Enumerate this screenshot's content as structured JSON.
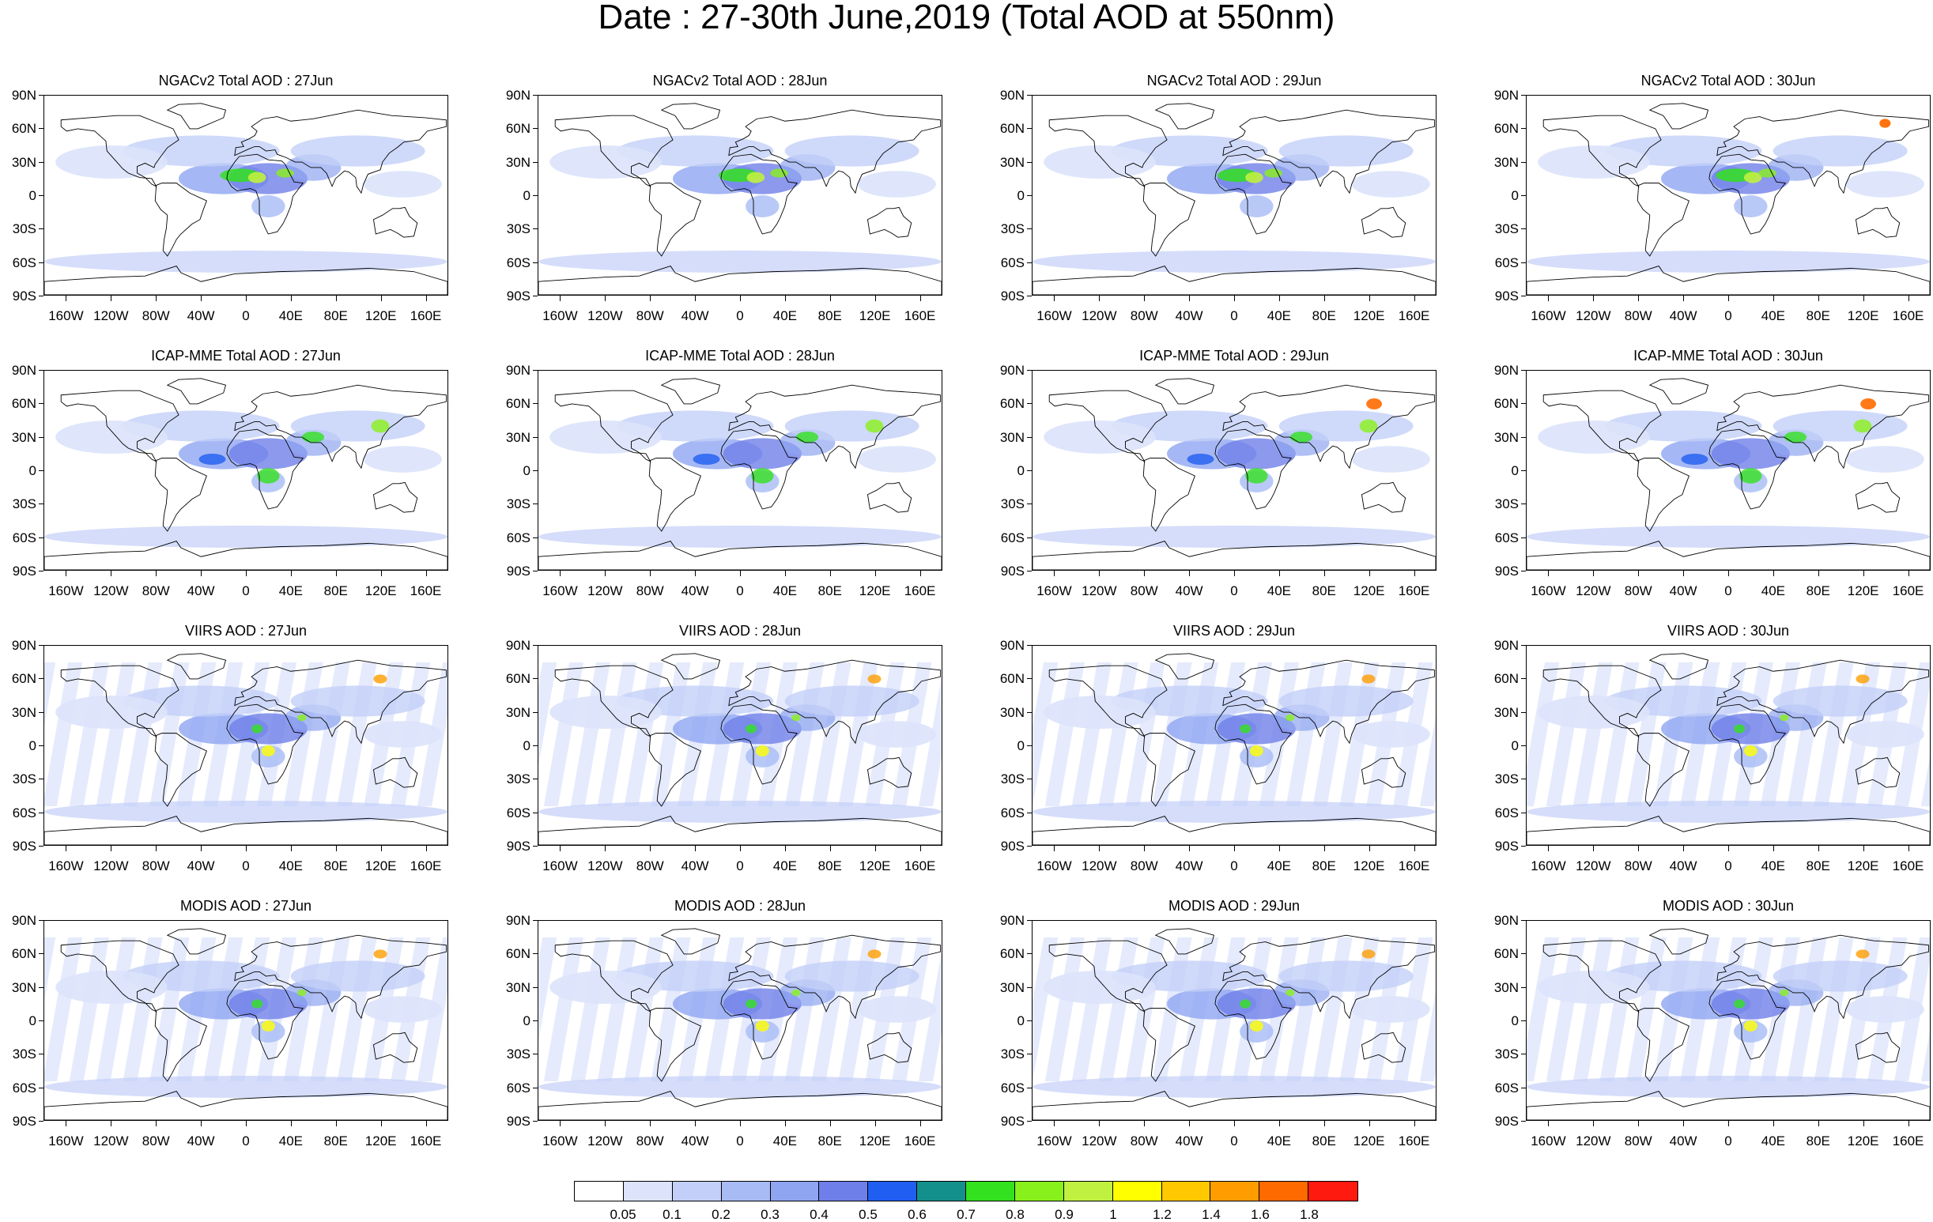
{
  "title": "Date : 27-30th June,2019 (Total AOD at 550nm)",
  "yticks": [
    "90N",
    "60N",
    "30N",
    "0",
    "30S",
    "60S",
    "90S"
  ],
  "xticks": [
    "160W",
    "120W",
    "80W",
    "40W",
    "0",
    "40E",
    "80E",
    "120E",
    "160E"
  ],
  "panels": [
    [
      "NGACv2 Total AOD : 27Jun",
      "NGACv2 Total AOD : 28Jun",
      "NGACv2 Total AOD : 29Jun",
      "NGACv2 Total AOD : 30Jun"
    ],
    [
      "ICAP-MME Total AOD : 27Jun",
      "ICAP-MME Total AOD : 28Jun",
      "ICAP-MME Total AOD : 29Jun",
      "ICAP-MME Total AOD : 30Jun"
    ],
    [
      "VIIRS AOD : 27Jun",
      "VIIRS AOD : 28Jun",
      "VIIRS AOD : 29Jun",
      "VIIRS AOD : 30Jun"
    ],
    [
      "MODIS AOD : 27Jun",
      "MODIS AOD : 28Jun",
      "MODIS AOD : 29Jun",
      "MODIS AOD : 30Jun"
    ]
  ],
  "colorbar": {
    "labels": [
      "0.05",
      "0.1",
      "0.2",
      "0.3",
      "0.4",
      "0.5",
      "0.6",
      "0.7",
      "0.8",
      "0.9",
      "1",
      "1.2",
      "1.4",
      "1.6",
      "1.8"
    ],
    "colors": [
      "#ffffff",
      "#dce3fb",
      "#c3cff8",
      "#a8bbf5",
      "#8fa5f1",
      "#6f7fe9",
      "#1f5ef0",
      "#14908c",
      "#33e11f",
      "#88f01a",
      "#c0f040",
      "#ffff00",
      "#ffc800",
      "#ff9d00",
      "#ff6a00",
      "#ff1a10"
    ]
  }
}
